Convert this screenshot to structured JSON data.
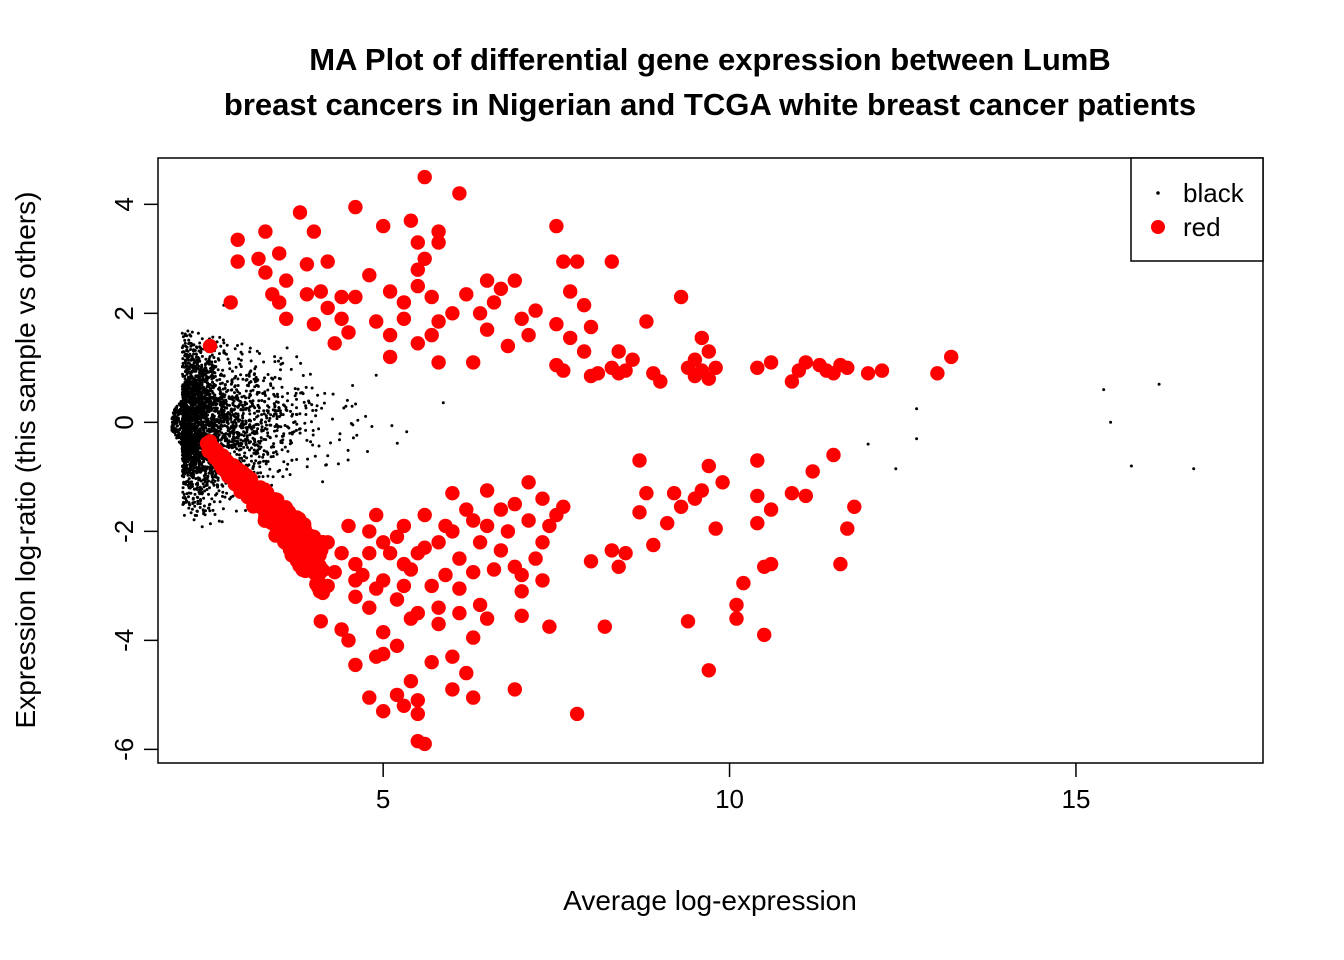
{
  "chart_data": {
    "type": "scatter",
    "title": [
      "MA Plot of differential gene expression between LumB",
      "breast cancers in Nigerian and TCGA white breast cancer patients"
    ],
    "xlabel": "Average log-expression",
    "ylabel": "Expression log-ratio (this sample vs others)",
    "xlim": [
      1.75,
      17.7
    ],
    "ylim": [
      -6.25,
      4.85
    ],
    "x_ticks": [
      5,
      10,
      15
    ],
    "y_ticks": [
      -6,
      -4,
      -2,
      0,
      2,
      4
    ],
    "legend": {
      "position": "top-right",
      "entries": [
        {
          "label": "black",
          "color": "#000000",
          "marker": "small-dot"
        },
        {
          "label": "red",
          "color": "#ff0000",
          "marker": "large-dot"
        }
      ]
    },
    "series": [
      {
        "name": "black",
        "color": "#000000",
        "generated": true,
        "outliers": [
          [
            15.4,
            0.6
          ],
          [
            16.2,
            0.7
          ],
          [
            15.5,
            0.0
          ],
          [
            15.8,
            -0.8
          ],
          [
            16.7,
            -0.85
          ],
          [
            12.7,
            0.25
          ],
          [
            12.7,
            -0.3
          ],
          [
            12.4,
            -0.85
          ],
          [
            12.0,
            -0.4
          ],
          [
            2.7,
            2.15
          ]
        ]
      },
      {
        "name": "red",
        "color": "#ff0000",
        "points": [
          [
            5.6,
            4.5
          ],
          [
            6.1,
            4.2
          ],
          [
            3.8,
            3.85
          ],
          [
            4.6,
            3.95
          ],
          [
            5.4,
            3.7
          ],
          [
            4.0,
            3.5
          ],
          [
            3.3,
            3.5
          ],
          [
            5.0,
            3.6
          ],
          [
            5.8,
            3.5
          ],
          [
            7.5,
            3.6
          ],
          [
            2.9,
            3.35
          ],
          [
            5.5,
            3.3
          ],
          [
            5.8,
            3.3
          ],
          [
            3.5,
            3.1
          ],
          [
            2.9,
            2.95
          ],
          [
            3.2,
            3.0
          ],
          [
            3.9,
            2.9
          ],
          [
            4.2,
            2.95
          ],
          [
            5.6,
            3.0
          ],
          [
            7.6,
            2.95
          ],
          [
            7.8,
            2.95
          ],
          [
            8.3,
            2.95
          ],
          [
            3.3,
            2.75
          ],
          [
            3.6,
            2.6
          ],
          [
            4.8,
            2.7
          ],
          [
            5.5,
            2.8
          ],
          [
            6.5,
            2.6
          ],
          [
            6.9,
            2.6
          ],
          [
            7.7,
            2.4
          ],
          [
            3.4,
            2.35
          ],
          [
            3.9,
            2.35
          ],
          [
            4.1,
            2.4
          ],
          [
            4.4,
            2.3
          ],
          [
            5.1,
            2.4
          ],
          [
            5.5,
            2.5
          ],
          [
            6.2,
            2.35
          ],
          [
            6.7,
            2.45
          ],
          [
            2.8,
            2.2
          ],
          [
            3.5,
            2.2
          ],
          [
            4.2,
            2.1
          ],
          [
            4.6,
            2.3
          ],
          [
            5.3,
            2.2
          ],
          [
            5.7,
            2.3
          ],
          [
            6.0,
            2.0
          ],
          [
            6.6,
            2.2
          ],
          [
            7.2,
            2.05
          ],
          [
            7.9,
            2.15
          ],
          [
            9.3,
            2.3
          ],
          [
            3.6,
            1.9
          ],
          [
            4.0,
            1.8
          ],
          [
            4.4,
            1.9
          ],
          [
            4.9,
            1.85
          ],
          [
            5.3,
            1.9
          ],
          [
            5.8,
            1.85
          ],
          [
            6.4,
            2.0
          ],
          [
            7.0,
            1.9
          ],
          [
            7.5,
            1.8
          ],
          [
            8.0,
            1.75
          ],
          [
            4.5,
            1.65
          ],
          [
            5.1,
            1.6
          ],
          [
            5.7,
            1.6
          ],
          [
            6.5,
            1.7
          ],
          [
            7.1,
            1.6
          ],
          [
            7.7,
            1.55
          ],
          [
            8.8,
            1.85
          ],
          [
            4.3,
            1.45
          ],
          [
            5.5,
            1.45
          ],
          [
            6.8,
            1.4
          ],
          [
            7.9,
            1.3
          ],
          [
            9.6,
            1.55
          ],
          [
            2.5,
            1.4
          ],
          [
            5.1,
            1.2
          ],
          [
            5.8,
            1.1
          ],
          [
            6.3,
            1.1
          ],
          [
            7.5,
            1.05
          ],
          [
            8.4,
            1.3
          ],
          [
            8.6,
            1.15
          ],
          [
            9.5,
            1.15
          ],
          [
            9.7,
            1.3
          ],
          [
            13.2,
            1.2
          ],
          [
            7.6,
            0.95
          ],
          [
            8.1,
            0.9
          ],
          [
            8.3,
            1.0
          ],
          [
            8.5,
            0.95
          ],
          [
            8.9,
            0.9
          ],
          [
            9.4,
            1.0
          ],
          [
            9.6,
            0.95
          ],
          [
            9.8,
            1.0
          ],
          [
            10.4,
            1.0
          ],
          [
            10.6,
            1.1
          ],
          [
            11.1,
            1.1
          ],
          [
            11.3,
            1.05
          ],
          [
            11.6,
            1.05
          ],
          [
            11.0,
            0.95
          ],
          [
            11.5,
            0.9
          ],
          [
            12.0,
            0.9
          ],
          [
            12.2,
            0.95
          ],
          [
            13.0,
            0.9
          ],
          [
            8.0,
            0.85
          ],
          [
            9.0,
            0.75
          ],
          [
            9.5,
            0.85
          ],
          [
            11.7,
            1.0
          ],
          [
            11.4,
            0.95
          ],
          [
            10.9,
            0.75
          ],
          [
            8.4,
            0.9
          ],
          [
            9.7,
            0.8
          ],
          [
            2.5,
            -0.35
          ],
          [
            3.0,
            -1.2
          ],
          [
            3.2,
            -1.45
          ],
          [
            3.4,
            -1.7
          ],
          [
            3.6,
            -1.9
          ],
          [
            3.8,
            -2.0
          ],
          [
            4.0,
            -2.1
          ],
          [
            4.2,
            -2.2
          ],
          [
            4.4,
            -2.4
          ],
          [
            4.6,
            -2.6
          ],
          [
            4.3,
            -2.75
          ],
          [
            4.7,
            -2.8
          ],
          [
            5.0,
            -2.9
          ],
          [
            4.2,
            -3.0
          ],
          [
            4.6,
            -3.2
          ],
          [
            5.2,
            -3.25
          ],
          [
            4.8,
            -3.4
          ],
          [
            5.5,
            -3.5
          ],
          [
            6.1,
            -3.5
          ],
          [
            4.1,
            -3.65
          ],
          [
            4.4,
            -3.8
          ],
          [
            5.0,
            -3.85
          ],
          [
            5.4,
            -3.6
          ],
          [
            5.8,
            -3.7
          ],
          [
            6.5,
            -3.6
          ],
          [
            7.0,
            -3.55
          ],
          [
            7.4,
            -3.75
          ],
          [
            8.2,
            -3.75
          ],
          [
            9.4,
            -3.65
          ],
          [
            10.1,
            -3.6
          ],
          [
            10.5,
            -3.9
          ],
          [
            4.5,
            -4.0
          ],
          [
            5.2,
            -4.1
          ],
          [
            6.3,
            -3.95
          ],
          [
            6.0,
            -4.3
          ],
          [
            4.6,
            -4.45
          ],
          [
            4.9,
            -4.3
          ],
          [
            5.0,
            -4.25
          ],
          [
            5.7,
            -4.4
          ],
          [
            6.2,
            -4.6
          ],
          [
            9.7,
            -4.55
          ],
          [
            5.4,
            -4.75
          ],
          [
            6.0,
            -4.9
          ],
          [
            6.9,
            -4.9
          ],
          [
            4.8,
            -5.05
          ],
          [
            5.2,
            -5.0
          ],
          [
            5.5,
            -5.1
          ],
          [
            6.3,
            -5.05
          ],
          [
            5.0,
            -5.3
          ],
          [
            5.3,
            -5.2
          ],
          [
            5.5,
            -5.35
          ],
          [
            7.8,
            -5.35
          ],
          [
            5.5,
            -5.85
          ],
          [
            5.6,
            -5.9
          ],
          [
            6.0,
            -1.3
          ],
          [
            6.5,
            -1.25
          ],
          [
            7.1,
            -1.1
          ],
          [
            7.6,
            -1.55
          ],
          [
            8.8,
            -1.3
          ],
          [
            8.7,
            -0.7
          ],
          [
            9.2,
            -1.3
          ],
          [
            9.7,
            -0.8
          ],
          [
            9.9,
            -1.1
          ],
          [
            10.4,
            -0.7
          ],
          [
            10.4,
            -1.35
          ],
          [
            10.9,
            -1.3
          ],
          [
            11.2,
            -0.9
          ],
          [
            11.5,
            -0.6
          ],
          [
            10.6,
            -1.6
          ],
          [
            11.1,
            -1.35
          ],
          [
            11.8,
            -1.55
          ],
          [
            11.7,
            -1.95
          ],
          [
            10.4,
            -1.85
          ],
          [
            9.8,
            -1.95
          ],
          [
            9.3,
            -1.55
          ],
          [
            9.1,
            -1.85
          ],
          [
            8.7,
            -1.65
          ],
          [
            8.3,
            -2.35
          ],
          [
            8.5,
            -2.4
          ],
          [
            8.9,
            -2.25
          ],
          [
            8.4,
            -2.65
          ],
          [
            8.0,
            -2.55
          ],
          [
            7.3,
            -2.2
          ],
          [
            6.7,
            -2.35
          ],
          [
            6.3,
            -2.75
          ],
          [
            6.9,
            -2.65
          ],
          [
            7.3,
            -2.9
          ],
          [
            7.0,
            -3.1
          ],
          [
            6.4,
            -3.35
          ],
          [
            10.6,
            -2.6
          ],
          [
            10.5,
            -2.65
          ],
          [
            11.6,
            -2.6
          ],
          [
            10.2,
            -2.95
          ],
          [
            10.1,
            -3.35
          ],
          [
            9.6,
            -1.25
          ],
          [
            9.5,
            -1.4
          ],
          [
            6.2,
            -1.6
          ],
          [
            6.5,
            -1.9
          ],
          [
            6.8,
            -2.0
          ],
          [
            7.1,
            -1.8
          ],
          [
            7.4,
            -1.9
          ],
          [
            6.0,
            -2.0
          ],
          [
            5.8,
            -2.2
          ],
          [
            5.5,
            -2.4
          ],
          [
            5.3,
            -2.6
          ],
          [
            5.0,
            -2.2
          ],
          [
            4.8,
            -2.0
          ],
          [
            5.6,
            -1.7
          ],
          [
            6.1,
            -2.5
          ],
          [
            6.4,
            -2.2
          ],
          [
            5.9,
            -2.8
          ],
          [
            5.7,
            -3.0
          ],
          [
            5.4,
            -2.7
          ],
          [
            5.1,
            -2.4
          ],
          [
            4.9,
            -1.7
          ],
          [
            5.3,
            -1.9
          ],
          [
            6.9,
            -1.5
          ],
          [
            7.5,
            -1.7
          ],
          [
            7.2,
            -2.5
          ],
          [
            5.6,
            -2.3
          ],
          [
            6.6,
            -2.7
          ],
          [
            7.0,
            -2.8
          ],
          [
            4.5,
            -1.9
          ],
          [
            4.8,
            -2.4
          ],
          [
            5.2,
            -2.1
          ],
          [
            5.9,
            -1.9
          ],
          [
            6.3,
            -1.8
          ],
          [
            6.7,
            -1.6
          ],
          [
            7.3,
            -1.4
          ],
          [
            4.6,
            -2.9
          ],
          [
            4.9,
            -3.05
          ],
          [
            5.3,
            -3.0
          ],
          [
            5.8,
            -3.4
          ],
          [
            6.1,
            -3.05
          ]
        ]
      }
    ]
  }
}
